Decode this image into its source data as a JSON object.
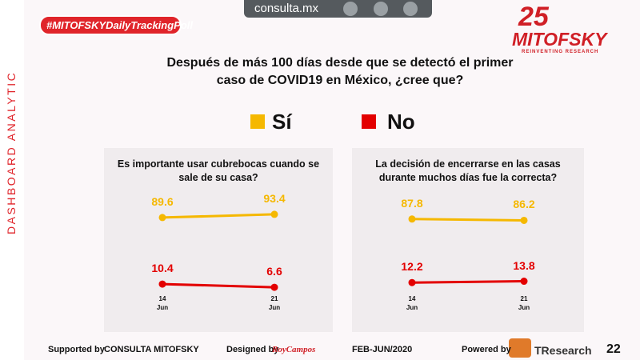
{
  "header": {
    "hashtag": "#MITOFSKYDailyTrackingPoll",
    "site": "consulta.mx",
    "logo_number": "25",
    "logo": "MITOFSKY",
    "logo_tagline": "REINVENTING RESEARCH",
    "side_label": "DASHBOARD ANALYTIC"
  },
  "question": "Después de más 100 días desde que se detectó el primer caso de COVID19 en México, ¿cree que?",
  "chart_data": [
    {
      "type": "line",
      "title": "Es importante usar cubrebocas cuando se sale de su casa?",
      "categories": [
        "14 Jun",
        "21 Jun"
      ],
      "series": [
        {
          "name": "Sí",
          "color": "#f5b800",
          "values": [
            89.6,
            93.4
          ]
        },
        {
          "name": "No",
          "color": "#e30000",
          "values": [
            10.4,
            6.6
          ]
        }
      ]
    },
    {
      "type": "line",
      "title": "La decisión de encerrarse en las casas durante muchos días fue la correcta?",
      "categories": [
        "14 Jun",
        "21 Jun"
      ],
      "series": [
        {
          "name": "Sí",
          "color": "#f5b800",
          "values": [
            87.8,
            86.2
          ]
        },
        {
          "name": "No",
          "color": "#e30000",
          "values": [
            12.2,
            13.8
          ]
        }
      ]
    }
  ],
  "footer": {
    "supported_label": "Supported by",
    "supported_by": "CONSULTA MITOFSKY",
    "designed_label": "Designed by",
    "designer": "RoyCampos",
    "period": "FEB-JUN/2020",
    "powered_label": "Powered by",
    "powered_by": "TResearch",
    "page": "22"
  }
}
